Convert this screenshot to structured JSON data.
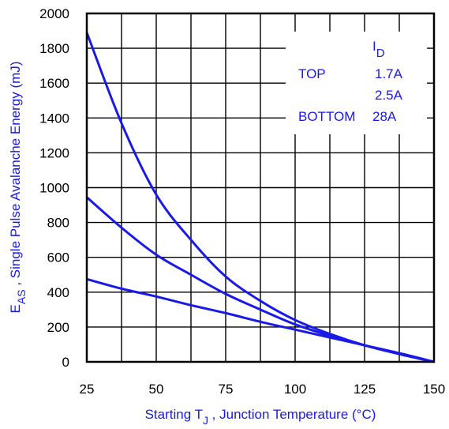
{
  "chart_data": {
    "type": "line",
    "xlim": [
      25,
      150
    ],
    "ylim": [
      0,
      2000
    ],
    "x_ticks": [
      25,
      50,
      75,
      100,
      125,
      150
    ],
    "y_ticks": [
      0,
      200,
      400,
      600,
      800,
      1000,
      1200,
      1400,
      1600,
      1800,
      2000
    ],
    "x_tick_labels": [
      "25",
      "50",
      "75",
      "100",
      "125",
      "150"
    ],
    "y_tick_labels": [
      "0",
      "200",
      "400",
      "600",
      "800",
      "1000",
      "1200",
      "1400",
      "1600",
      "1800",
      "2000"
    ],
    "xlabel": {
      "prefix": "Starting T",
      "sub": "J",
      "suffix": " , Junction Temperature (°C)"
    },
    "ylabel": {
      "prefix": "E",
      "sub": "AS",
      "suffix": " , Single Pulse Avalanche Energy (mJ)"
    },
    "grid": true,
    "legend": {
      "placement": "top-right",
      "header_main": "I",
      "header_sub": "D",
      "rows": [
        {
          "label": "TOP",
          "value": "1.7A"
        },
        {
          "label": "",
          "value": "2.5A"
        },
        {
          "label": "BOTTOM",
          "value": "28A"
        }
      ]
    },
    "series": [
      {
        "color": "#1a1ae6",
        "x": [
          25,
          37.5,
          50,
          62.5,
          75,
          87.5,
          100,
          112.5,
          125,
          137.5,
          150
        ],
        "y": [
          1890,
          1370,
          960,
          700,
          490,
          350,
          240,
          160,
          95,
          45,
          0
        ]
      },
      {
        "color": "#1a1ae6",
        "x": [
          25,
          37.5,
          50,
          62.5,
          75,
          87.5,
          100,
          112.5,
          125,
          137.5,
          150
        ],
        "y": [
          945,
          770,
          615,
          500,
          390,
          300,
          215,
          150,
          95,
          45,
          0
        ]
      },
      {
        "color": "#1a1ae6",
        "x": [
          25,
          37.5,
          50,
          62.5,
          75,
          87.5,
          100,
          112.5,
          125,
          137.5,
          150
        ],
        "y": [
          475,
          420,
          375,
          325,
          280,
          230,
          185,
          140,
          95,
          50,
          0
        ]
      }
    ]
  }
}
